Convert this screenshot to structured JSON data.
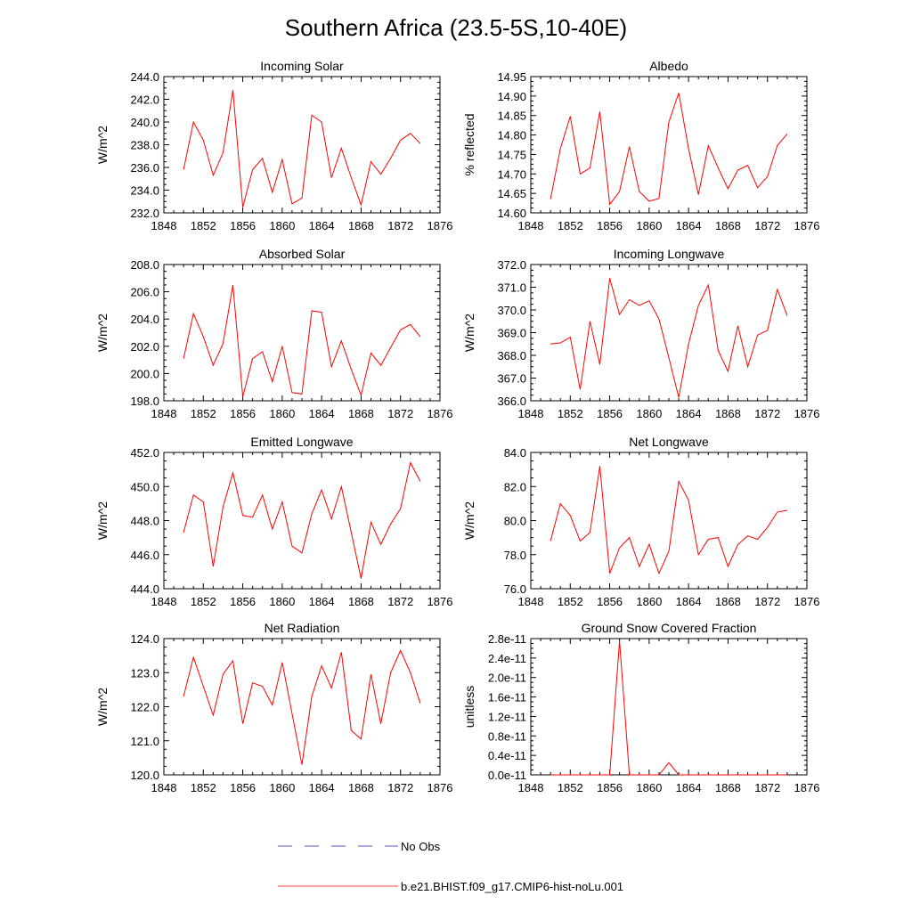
{
  "title": "Southern Africa (23.5-5S,10-40E)",
  "colors": {
    "model": "#ff0000",
    "obs": "#2020b0",
    "axis": "#000000"
  },
  "legend": {
    "obs_label": "No Obs",
    "model_label": "b.e21.BHIST.f09_g17.CMIP6-hist-noLu.001"
  },
  "chart_data": [
    {
      "type": "line",
      "title": "Incoming Solar",
      "xlabel": "",
      "ylabel": "W/m^2",
      "xlim": [
        1848,
        1876
      ],
      "ylim": [
        232.0,
        244.0
      ],
      "xticks": [
        "1848",
        "1852",
        "1856",
        "1860",
        "1864",
        "1868",
        "1872",
        "1876"
      ],
      "yticks": [
        "232.0",
        "234.0",
        "236.0",
        "238.0",
        "240.0",
        "242.0",
        "244.0"
      ],
      "series": [
        {
          "name": "b.e21.BHIST.f09_g17.CMIP6-hist-noLu.001",
          "x": [
            1850,
            1851,
            1852,
            1853,
            1854,
            1855,
            1856,
            1857,
            1858,
            1859,
            1860,
            1861,
            1862,
            1863,
            1864,
            1865,
            1866,
            1867,
            1868,
            1869,
            1870,
            1871,
            1872,
            1873,
            1874
          ],
          "y": [
            235.8,
            240.0,
            238.4,
            235.3,
            237.3,
            242.8,
            232.5,
            235.8,
            236.8,
            233.8,
            236.7,
            232.8,
            233.3,
            240.6,
            240.0,
            235.1,
            237.7,
            235.1,
            232.7,
            236.5,
            235.4,
            236.8,
            238.4,
            239.0,
            238.1
          ]
        }
      ]
    },
    {
      "type": "line",
      "title": "Albedo",
      "xlabel": "",
      "ylabel": "% reflected",
      "xlim": [
        1848,
        1876
      ],
      "ylim": [
        14.6,
        14.95
      ],
      "xticks": [
        "1848",
        "1852",
        "1856",
        "1860",
        "1864",
        "1868",
        "1872",
        "1876"
      ],
      "yticks": [
        "14.60",
        "14.65",
        "14.70",
        "14.75",
        "14.80",
        "14.85",
        "14.90",
        "14.95"
      ],
      "series": [
        {
          "name": "b.e21.BHIST.f09_g17.CMIP6-hist-noLu.001",
          "x": [
            1850,
            1851,
            1852,
            1853,
            1854,
            1855,
            1856,
            1857,
            1858,
            1859,
            1860,
            1861,
            1862,
            1863,
            1864,
            1865,
            1866,
            1867,
            1868,
            1869,
            1870,
            1871,
            1872,
            1873,
            1874
          ],
          "y": [
            14.635,
            14.765,
            14.848,
            14.7,
            14.715,
            14.86,
            14.622,
            14.655,
            14.77,
            14.655,
            14.63,
            14.637,
            14.833,
            14.908,
            14.765,
            14.647,
            14.773,
            14.715,
            14.662,
            14.71,
            14.722,
            14.665,
            14.693,
            14.773,
            14.803
          ]
        }
      ]
    },
    {
      "type": "line",
      "title": "Absorbed Solar",
      "xlabel": "",
      "ylabel": "W/m^2",
      "xlim": [
        1848,
        1876
      ],
      "ylim": [
        198.0,
        208.0
      ],
      "xticks": [
        "1848",
        "1852",
        "1856",
        "1860",
        "1864",
        "1868",
        "1872",
        "1876"
      ],
      "yticks": [
        "198.0",
        "200.0",
        "202.0",
        "204.0",
        "206.0",
        "208.0"
      ],
      "series": [
        {
          "name": "b.e21.BHIST.f09_g17.CMIP6-hist-noLu.001",
          "x": [
            1850,
            1851,
            1852,
            1853,
            1854,
            1855,
            1856,
            1857,
            1858,
            1859,
            1860,
            1861,
            1862,
            1863,
            1864,
            1865,
            1866,
            1867,
            1868,
            1869,
            1870,
            1871,
            1872,
            1873,
            1874
          ],
          "y": [
            201.1,
            204.4,
            202.7,
            200.6,
            202.2,
            206.5,
            198.3,
            201.1,
            201.6,
            199.4,
            202.0,
            198.6,
            198.5,
            204.6,
            204.5,
            200.5,
            202.4,
            200.3,
            198.4,
            201.5,
            200.6,
            201.9,
            203.2,
            203.6,
            202.7
          ]
        }
      ]
    },
    {
      "type": "line",
      "title": "Incoming Longwave",
      "xlabel": "",
      "ylabel": "W/m^2",
      "xlim": [
        1848,
        1876
      ],
      "ylim": [
        366.0,
        372.0
      ],
      "xticks": [
        "1848",
        "1852",
        "1856",
        "1860",
        "1864",
        "1868",
        "1872",
        "1876"
      ],
      "yticks": [
        "366.0",
        "367.0",
        "368.0",
        "369.0",
        "370.0",
        "371.0",
        "372.0"
      ],
      "series": [
        {
          "name": "b.e21.BHIST.f09_g17.CMIP6-hist-noLu.001",
          "x": [
            1850,
            1851,
            1852,
            1853,
            1854,
            1855,
            1856,
            1857,
            1858,
            1859,
            1860,
            1861,
            1862,
            1863,
            1864,
            1865,
            1866,
            1867,
            1868,
            1869,
            1870,
            1871,
            1872,
            1873,
            1874
          ],
          "y": [
            368.5,
            368.55,
            368.8,
            366.5,
            369.5,
            367.6,
            371.4,
            369.8,
            370.45,
            370.2,
            370.4,
            369.6,
            367.9,
            366.15,
            368.5,
            370.2,
            371.1,
            368.2,
            367.3,
            369.3,
            367.5,
            368.9,
            369.1,
            370.9,
            369.75
          ]
        }
      ]
    },
    {
      "type": "line",
      "title": "Emitted Longwave",
      "xlabel": "",
      "ylabel": "W/m^2",
      "xlim": [
        1848,
        1876
      ],
      "ylim": [
        444.0,
        452.0
      ],
      "xticks": [
        "1848",
        "1852",
        "1856",
        "1860",
        "1864",
        "1868",
        "1872",
        "1876"
      ],
      "yticks": [
        "444.0",
        "446.0",
        "448.0",
        "450.0",
        "452.0"
      ],
      "series": [
        {
          "name": "b.e21.BHIST.f09_g17.CMIP6-hist-noLu.001",
          "x": [
            1850,
            1851,
            1852,
            1853,
            1854,
            1855,
            1856,
            1857,
            1858,
            1859,
            1860,
            1861,
            1862,
            1863,
            1864,
            1865,
            1866,
            1867,
            1868,
            1869,
            1870,
            1871,
            1872,
            1873,
            1874
          ],
          "y": [
            447.3,
            449.5,
            449.1,
            445.3,
            448.8,
            450.8,
            448.3,
            448.2,
            449.5,
            447.5,
            449.1,
            446.5,
            446.1,
            448.4,
            449.8,
            448.1,
            450.0,
            447.3,
            444.6,
            447.9,
            446.6,
            447.8,
            448.7,
            451.4,
            450.3
          ]
        }
      ]
    },
    {
      "type": "line",
      "title": "Net Longwave",
      "xlabel": "",
      "ylabel": "W/m^2",
      "xlim": [
        1848,
        1876
      ],
      "ylim": [
        76.0,
        84.0
      ],
      "xticks": [
        "1848",
        "1852",
        "1856",
        "1860",
        "1864",
        "1868",
        "1872",
        "1876"
      ],
      "yticks": [
        "76.0",
        "78.0",
        "80.0",
        "82.0",
        "84.0"
      ],
      "series": [
        {
          "name": "b.e21.BHIST.f09_g17.CMIP6-hist-noLu.001",
          "x": [
            1850,
            1851,
            1852,
            1853,
            1854,
            1855,
            1856,
            1857,
            1858,
            1859,
            1860,
            1861,
            1862,
            1863,
            1864,
            1865,
            1866,
            1867,
            1868,
            1869,
            1870,
            1871,
            1872,
            1873,
            1874
          ],
          "y": [
            78.8,
            81.0,
            80.3,
            78.8,
            79.3,
            83.2,
            76.9,
            78.4,
            79.0,
            77.3,
            78.6,
            76.9,
            78.2,
            82.3,
            81.2,
            78.0,
            78.9,
            79.0,
            77.3,
            78.6,
            79.1,
            78.9,
            79.6,
            80.5,
            80.6
          ]
        }
      ]
    },
    {
      "type": "line",
      "title": "Net Radiation",
      "xlabel": "",
      "ylabel": "W/m^2",
      "xlim": [
        1848,
        1876
      ],
      "ylim": [
        120.0,
        124.0
      ],
      "xticks": [
        "1848",
        "1852",
        "1856",
        "1860",
        "1864",
        "1868",
        "1872",
        "1876"
      ],
      "yticks": [
        "120.0",
        "121.0",
        "122.0",
        "123.0",
        "124.0"
      ],
      "series": [
        {
          "name": "b.e21.BHIST.f09_g17.CMIP6-hist-noLu.001",
          "x": [
            1850,
            1851,
            1852,
            1853,
            1854,
            1855,
            1856,
            1857,
            1858,
            1859,
            1860,
            1861,
            1862,
            1863,
            1864,
            1865,
            1866,
            1867,
            1868,
            1869,
            1870,
            1871,
            1872,
            1873,
            1874
          ],
          "y": [
            122.3,
            123.45,
            122.6,
            121.75,
            122.95,
            123.35,
            121.5,
            122.7,
            122.6,
            122.05,
            123.3,
            121.8,
            120.3,
            122.3,
            123.2,
            122.55,
            123.6,
            121.3,
            121.05,
            122.95,
            121.5,
            123.0,
            123.65,
            123.0,
            122.1
          ]
        }
      ]
    },
    {
      "type": "line",
      "title": "Ground Snow Covered Fraction",
      "xlabel": "",
      "ylabel": "unitless",
      "xlim": [
        1848,
        1876
      ],
      "ylim": [
        0.0,
        2.8e-11
      ],
      "xticks": [
        "1848",
        "1852",
        "1856",
        "1860",
        "1864",
        "1868",
        "1872",
        "1876"
      ],
      "yticks": [
        "0.0e-11",
        "0.4e-11",
        "0.8e-11",
        "1.2e-11",
        "1.6e-11",
        "2.0e-11",
        "2.4e-11",
        "2.8e-11"
      ],
      "series": [
        {
          "name": "b.e21.BHIST.f09_g17.CMIP6-hist-noLu.001",
          "x": [
            1850,
            1851,
            1852,
            1853,
            1854,
            1855,
            1856,
            1857,
            1858,
            1859,
            1860,
            1861,
            1862,
            1863,
            1864,
            1865,
            1866,
            1867,
            1868,
            1869,
            1870,
            1871,
            1872,
            1873,
            1874
          ],
          "y": [
            0,
            0,
            0,
            0,
            0,
            0,
            0,
            2.75e-11,
            0,
            0,
            0,
            0,
            2.5e-12,
            0,
            0,
            0,
            0,
            0,
            0,
            0,
            0,
            0,
            0,
            0,
            0
          ]
        }
      ]
    }
  ]
}
